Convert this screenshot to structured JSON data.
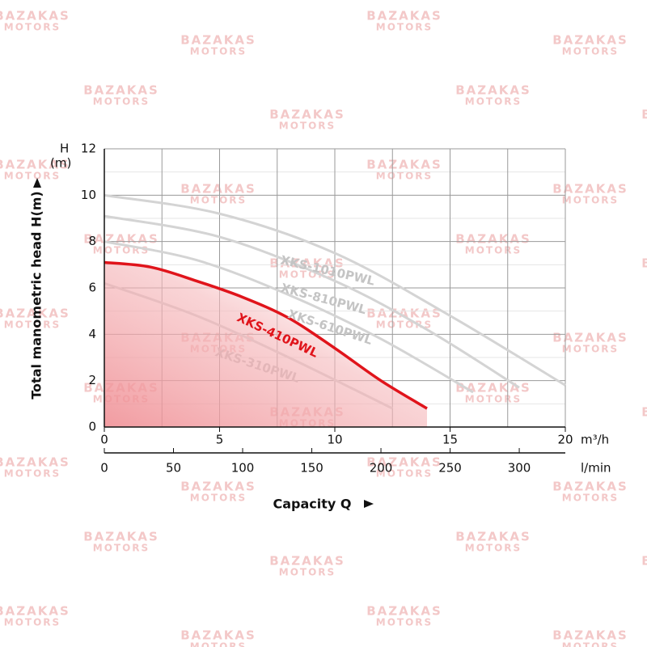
{
  "chart_data": {
    "type": "line",
    "watermark": [
      "BAZAKAS",
      "MOTORS"
    ],
    "y_label_short": "H",
    "y_unit_short": "(m)",
    "y_label": "Total manometric head H(m)",
    "x_label": "Capacity Q",
    "x_unit": "m³/h",
    "x2_unit": "l/min",
    "xlim": [
      0,
      20
    ],
    "xticks": [
      0,
      5,
      10,
      15,
      20
    ],
    "xminor": [
      2.5,
      7.5,
      12.5,
      17.5
    ],
    "x2lim": [
      0,
      333.3
    ],
    "x2ticks": [
      0,
      50,
      100,
      150,
      200,
      250,
      300
    ],
    "ylim": [
      0,
      12
    ],
    "yticks": [
      0,
      2,
      4,
      6,
      8,
      10,
      12
    ],
    "yminor": [
      1,
      3,
      5,
      7,
      9,
      11
    ],
    "grid": true,
    "series": [
      {
        "name": "XKS-310PWL",
        "color": "#d4d4d4",
        "x": [
          0,
          4,
          8,
          12.5
        ],
        "values": [
          6.2,
          4.8,
          3.0,
          0.8
        ]
      },
      {
        "name": "XKS-410PWL",
        "color": "#e0141b",
        "x": [
          0,
          2,
          4,
          6,
          8,
          10,
          12,
          14
        ],
        "values": [
          7.1,
          6.9,
          6.3,
          5.6,
          4.7,
          3.4,
          2.0,
          0.8
        ]
      },
      {
        "name": "XKS-610PWL",
        "color": "#d4d4d4",
        "x": [
          0,
          4,
          8,
          12,
          16
        ],
        "values": [
          8.0,
          7.2,
          5.7,
          3.8,
          1.5
        ]
      },
      {
        "name": "XKS-810PWL",
        "color": "#d4d4d4",
        "x": [
          0,
          5,
          10,
          14,
          18
        ],
        "values": [
          9.1,
          8.2,
          6.3,
          4.2,
          1.7
        ]
      },
      {
        "name": "XKS-1010PWL",
        "color": "#d4d4d4",
        "x": [
          0,
          5,
          10,
          15,
          20
        ],
        "values": [
          10.0,
          9.2,
          7.5,
          4.8,
          1.8
        ]
      }
    ]
  }
}
